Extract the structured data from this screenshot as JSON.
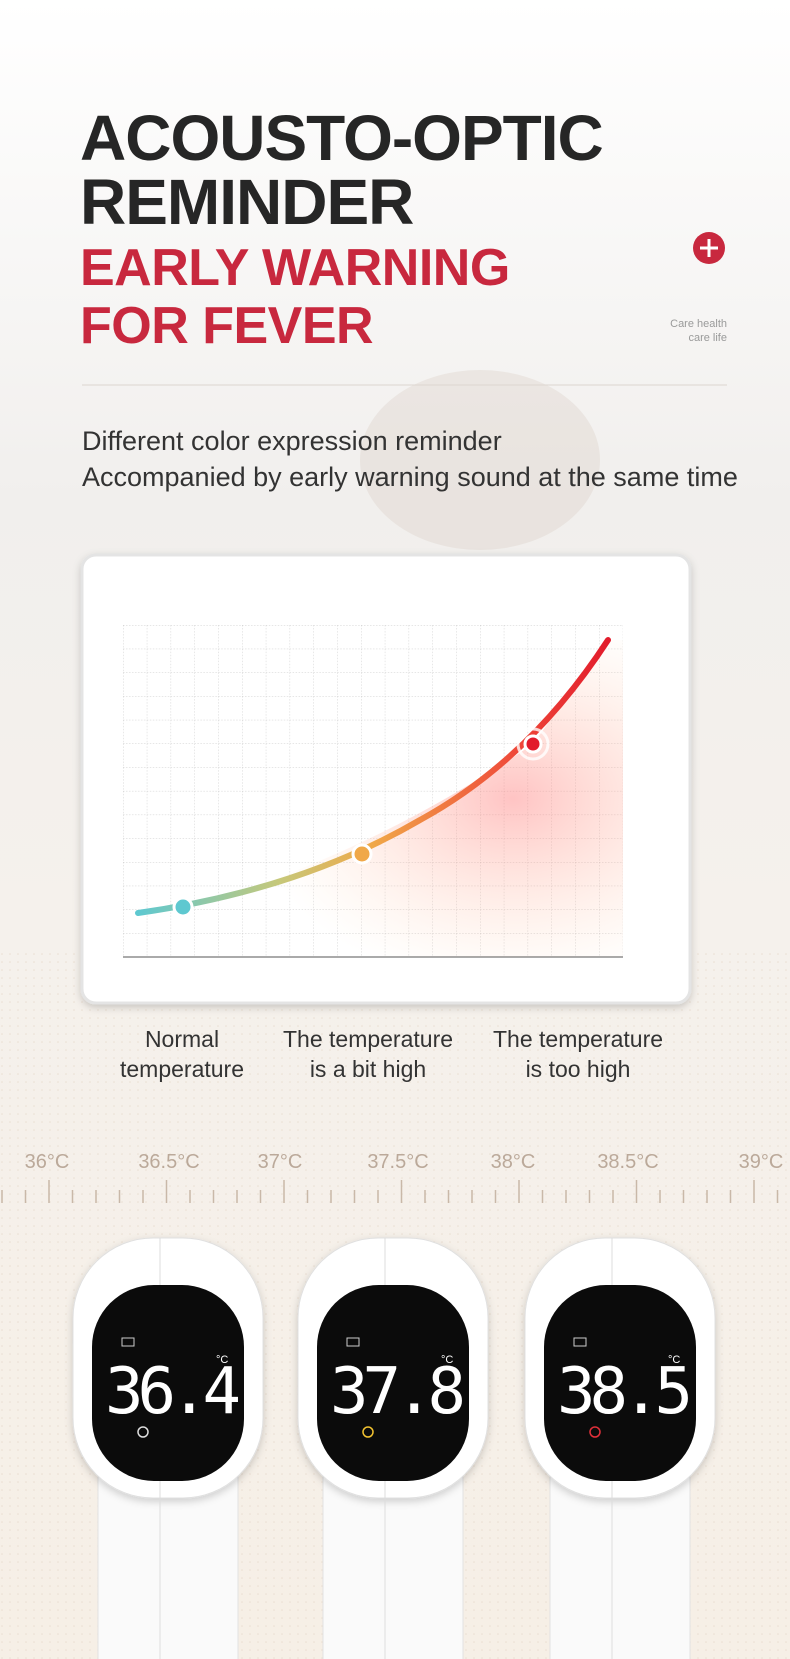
{
  "header": {
    "title_lines": [
      "ACOUSTO-OPTIC",
      "REMINDER"
    ],
    "subtitle_lines": [
      "EARLY WARNING",
      "FOR FEVER"
    ],
    "tagline_lines": [
      "Care health",
      "care life"
    ]
  },
  "description": [
    "Different color expression reminder",
    "Accompanied by early warning sound at the same time"
  ],
  "levels": [
    {
      "label_lines": [
        "Normal",
        "temperature"
      ]
    },
    {
      "label_lines": [
        "The temperature",
        "is a bit high"
      ]
    },
    {
      "label_lines": [
        "The temperature",
        "is too high"
      ]
    }
  ],
  "scale": [
    "36°C",
    "36.5°C",
    "37°C",
    "37.5°C",
    "38°C",
    "38.5°C",
    "39°C"
  ],
  "devices": [
    {
      "reading": "36.4",
      "unit": "°C"
    },
    {
      "reading": "37.8",
      "unit": "°C"
    },
    {
      "reading": "38.5",
      "unit": "°C"
    }
  ]
}
